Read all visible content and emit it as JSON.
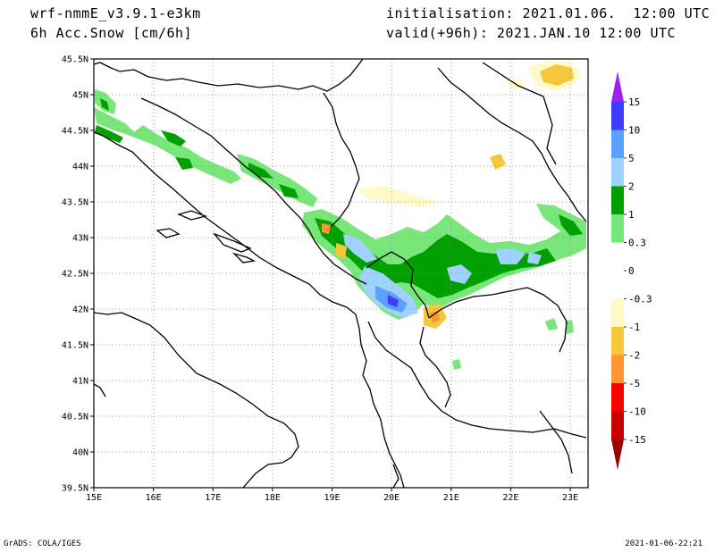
{
  "header": {
    "model": "wrf-nmmE_v3.9.1-e3km",
    "field": "6h Acc.Snow [cm/6h]",
    "initialisation": "initialisation: 2021.01.06.  12:00 UTC",
    "valid": "valid(+96h): 2021.JAN.10 12:00 UTC"
  },
  "footer": {
    "credit": "GrADS: COLA/IGES",
    "timestamp": "2021-01-06-22:21"
  },
  "map": {
    "lon_range": [
      15,
      23.3
    ],
    "lat_range": [
      39.5,
      45.5
    ],
    "lon_ticks": [
      "15E",
      "16E",
      "17E",
      "18E",
      "19E",
      "20E",
      "21E",
      "22E",
      "23E"
    ],
    "lat_ticks": [
      "45.5N",
      "45N",
      "44.5N",
      "44N",
      "43.5N",
      "43N",
      "42.5N",
      "42N",
      "41.5N",
      "41N",
      "40.5N",
      "40N",
      "39.5N"
    ],
    "grid": "dotted"
  },
  "colorbar": {
    "labels": [
      "15",
      "10",
      "5",
      "2",
      "1",
      "0.3",
      "0",
      "-0.3",
      "-1",
      "-2",
      "-5",
      "-10",
      "-15"
    ],
    "colors": [
      "#a020f0",
      "#3c3cff",
      "#5aa0ff",
      "#a0d2ff",
      "#00a000",
      "#78e678",
      "#ffffff",
      "#ffffff",
      "#fffac8",
      "#f5c83c",
      "#ff9632",
      "#ff0000",
      "#c80000",
      "#a00000"
    ]
  }
}
